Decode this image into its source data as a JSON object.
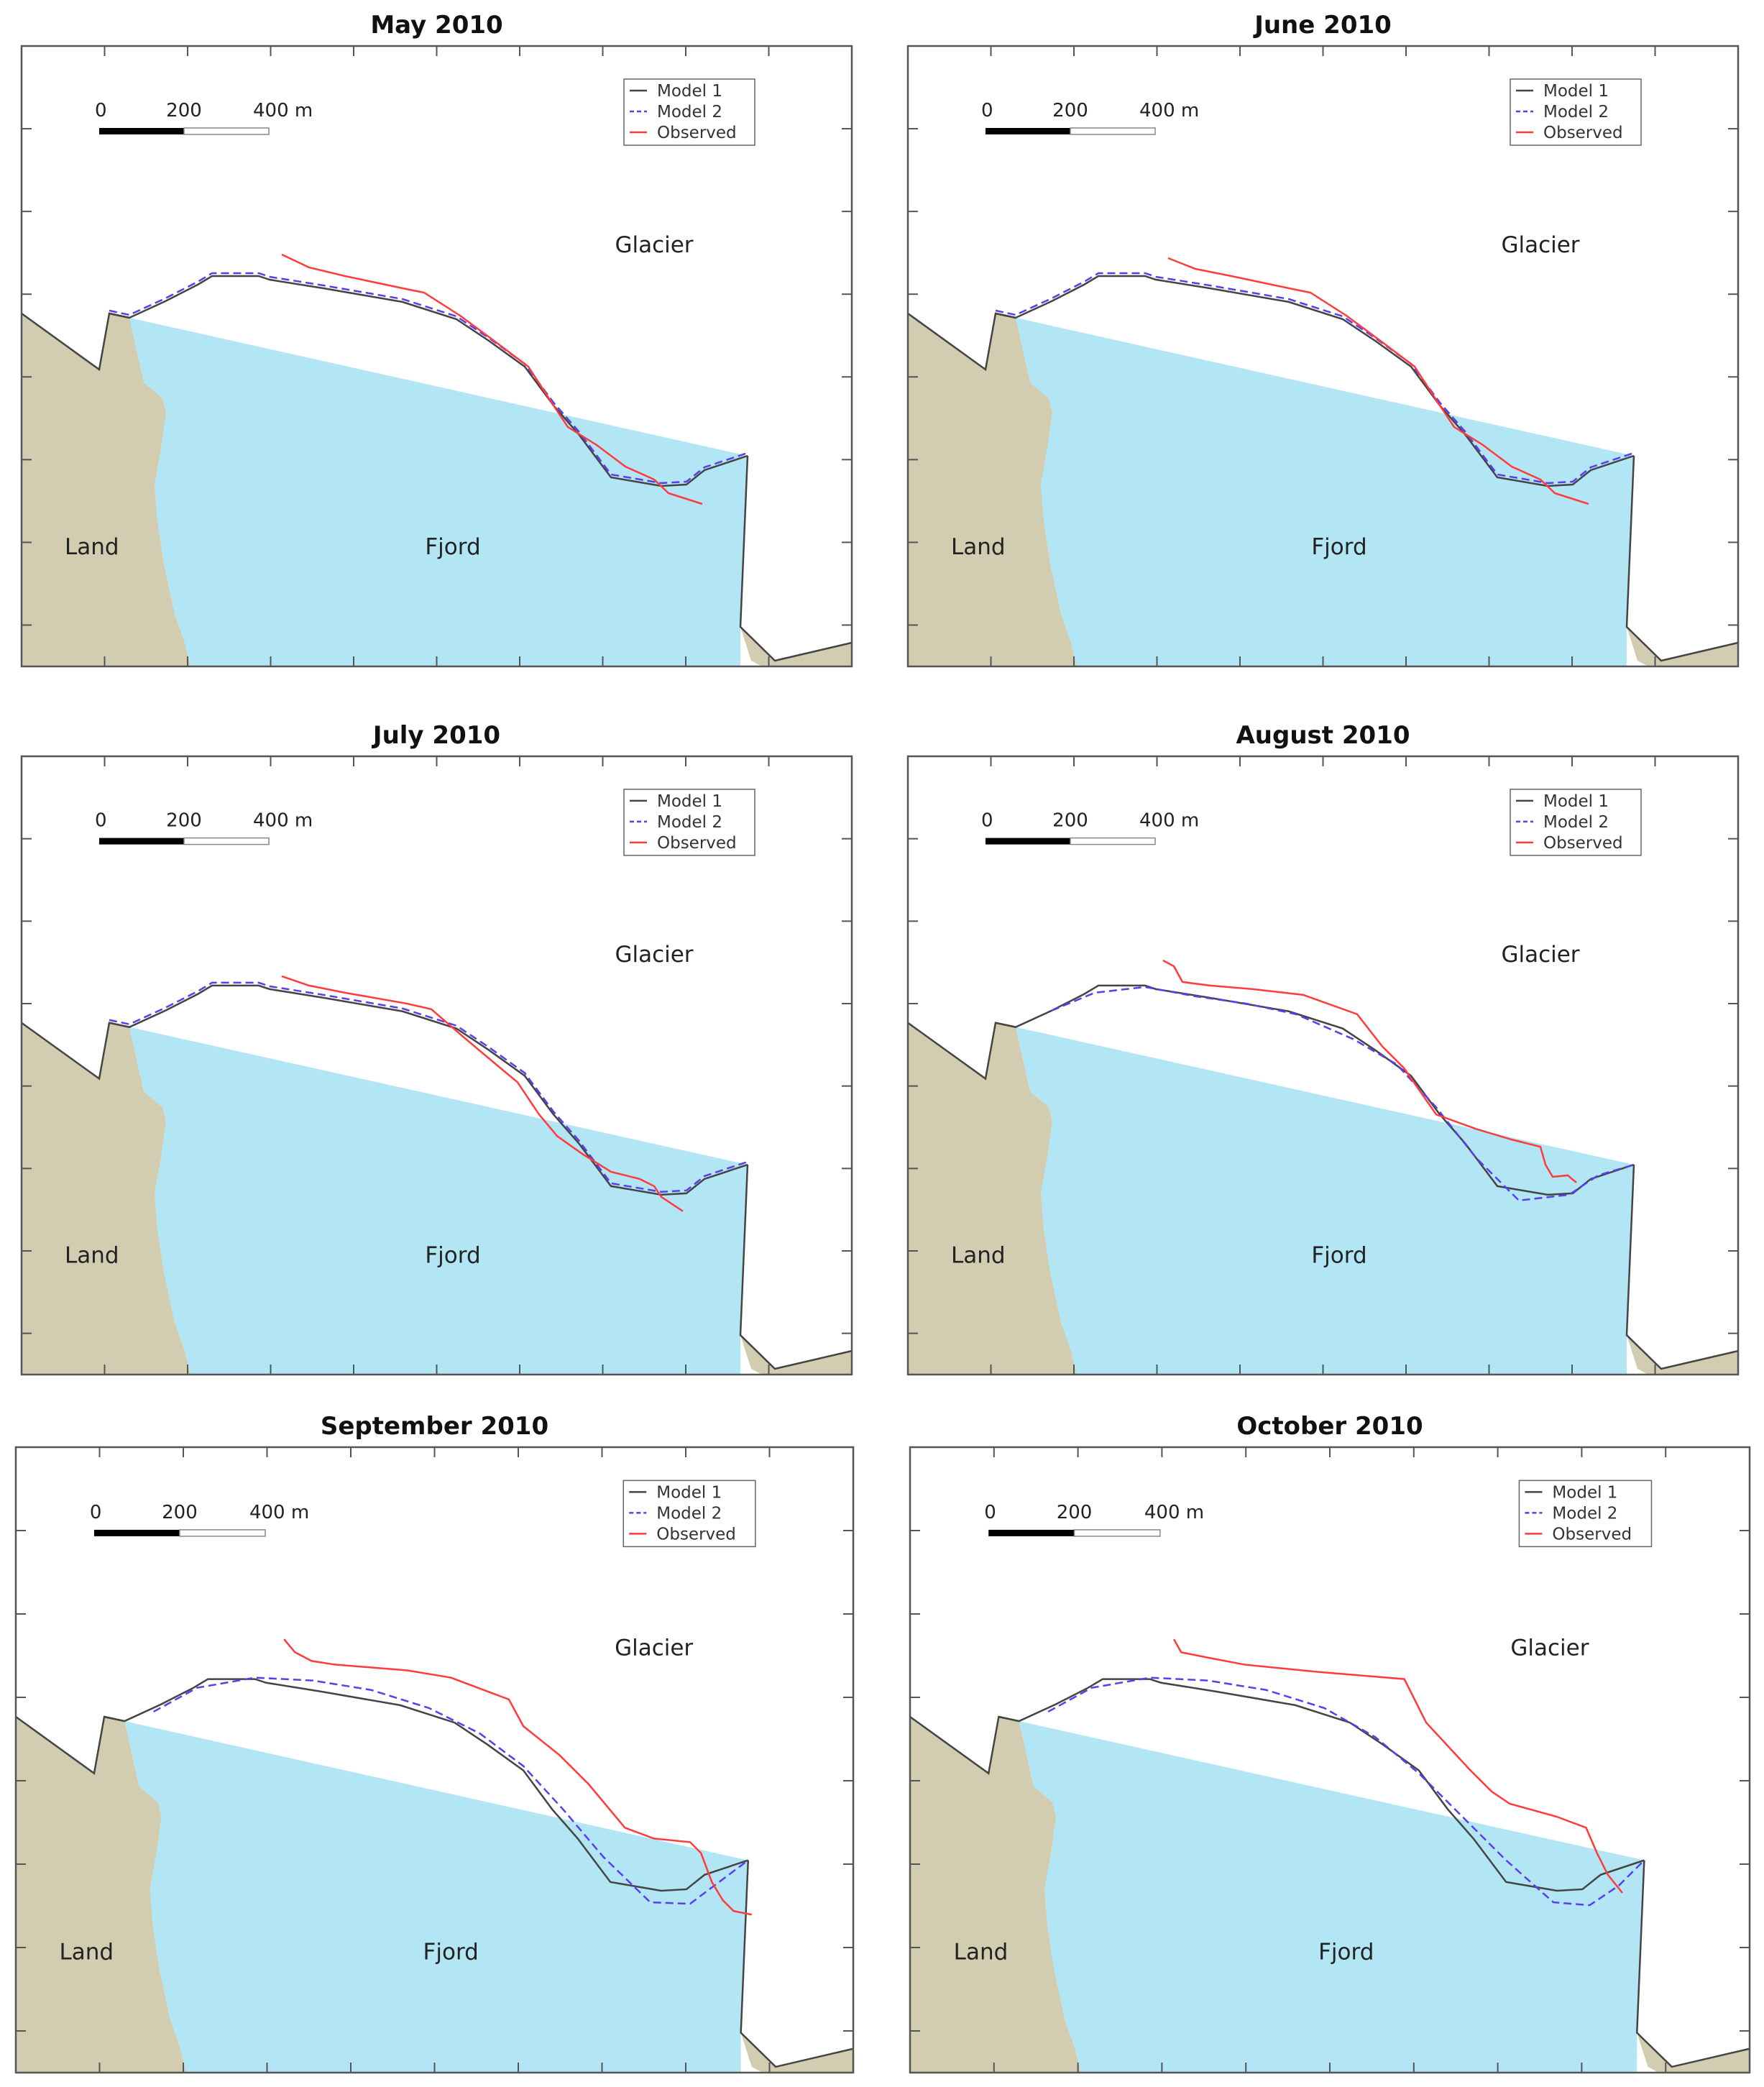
{
  "panels": [
    {
      "title": "May 2010"
    },
    {
      "title": "June 2010"
    },
    {
      "title": "July 2010"
    },
    {
      "title": "August 2010"
    },
    {
      "title": "September 2010"
    },
    {
      "title": "October 2010"
    }
  ],
  "labels": {
    "land": "Land",
    "fjord": "Fjord",
    "glacier": "Glacier"
  },
  "legend": [
    {
      "label": "Model 1",
      "color": "#444444",
      "style": "solid"
    },
    {
      "label": "Model 2",
      "color": "#5b3df0",
      "style": "dashed"
    },
    {
      "label": "Observed",
      "color": "#ff3b3b",
      "style": "solid"
    }
  ],
  "scale_bar": {
    "ticks": [
      "0",
      "200",
      "400 m"
    ]
  },
  "colors": {
    "land": "#d2ccb0",
    "fjord": "#b3e6f4",
    "frame": "#555555"
  }
}
